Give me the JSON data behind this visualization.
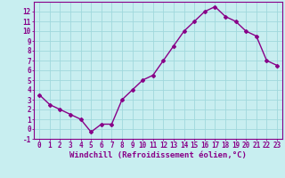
{
  "x": [
    0,
    1,
    2,
    3,
    4,
    5,
    6,
    7,
    8,
    9,
    10,
    11,
    12,
    13,
    14,
    15,
    16,
    17,
    18,
    19,
    20,
    21,
    22,
    23
  ],
  "y": [
    3.5,
    2.5,
    2.0,
    1.5,
    1.0,
    -0.3,
    0.5,
    0.5,
    3.0,
    4.0,
    5.0,
    5.5,
    7.0,
    8.5,
    10.0,
    11.0,
    12.0,
    12.5,
    11.5,
    11.0,
    10.0,
    9.5,
    7.0,
    6.5
  ],
  "line_color": "#880088",
  "bg_color": "#c8eef0",
  "grid_color": "#a0d8dc",
  "xlabel": "Windchill (Refroidissement éolien,°C)",
  "xlim": [
    -0.5,
    23.5
  ],
  "ylim": [
    -1.0,
    13.0
  ],
  "yticks": [
    -1,
    0,
    1,
    2,
    3,
    4,
    5,
    6,
    7,
    8,
    9,
    10,
    11,
    12
  ],
  "xticks": [
    0,
    1,
    2,
    3,
    4,
    5,
    6,
    7,
    8,
    9,
    10,
    11,
    12,
    13,
    14,
    15,
    16,
    17,
    18,
    19,
    20,
    21,
    22,
    23
  ],
  "marker": "D",
  "marker_size": 2.0,
  "line_width": 1.0,
  "xlabel_fontsize": 6.5,
  "tick_fontsize": 5.5,
  "axis_color": "#880088"
}
